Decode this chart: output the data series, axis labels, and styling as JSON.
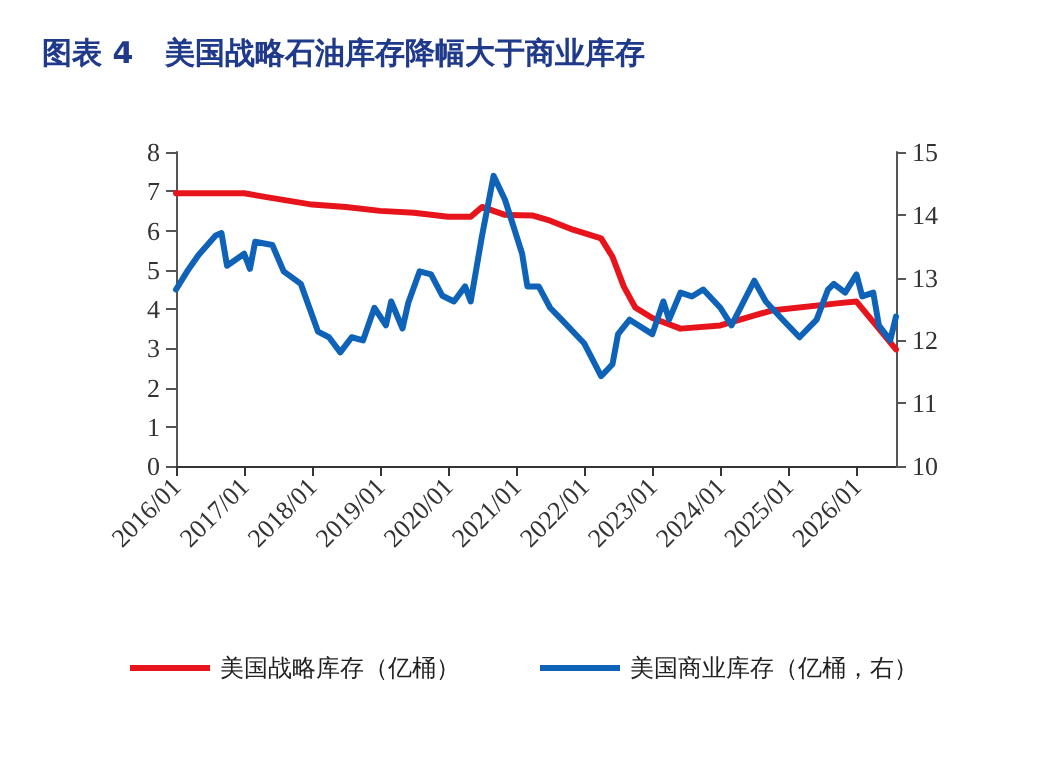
{
  "chart_data": {
    "type": "line",
    "title": "图表 4   美国战略石油库存降幅大于商业库存",
    "xlim": [
      "2016-01",
      "2026-08"
    ],
    "xticks": [
      {
        "value": "2016-01",
        "label": "2016/01"
      },
      {
        "value": "2017-01",
        "label": "2017/01"
      },
      {
        "value": "2018-01",
        "label": "2018/01"
      },
      {
        "value": "2019-01",
        "label": "2019/01"
      },
      {
        "value": "2020-01",
        "label": "2020/01"
      },
      {
        "value": "2021-01",
        "label": "2021/01"
      },
      {
        "value": "2022-01",
        "label": "2022/01"
      },
      {
        "value": "2023-01",
        "label": "2023/01"
      },
      {
        "value": "2024-01",
        "label": "2024/01"
      },
      {
        "value": "2025-01",
        "label": "2025/01"
      },
      {
        "value": "2026-01",
        "label": "2026/01"
      }
    ],
    "ylim": [
      0,
      8
    ],
    "yticks": [
      0,
      1,
      2,
      3,
      4,
      5,
      6,
      7,
      8
    ],
    "y2lim": [
      10,
      15
    ],
    "y2ticks": [
      10,
      11,
      12,
      13,
      14,
      15
    ],
    "grid": false,
    "legend": "bottom",
    "marker": "none",
    "line_style": "solid",
    "series": [
      {
        "name": "美国战略库存（亿桶）",
        "color": "#e8141c",
        "x": [
          "2016-01",
          "2017-01",
          "2017-05",
          "2018-01",
          "2018-07",
          "2019-01",
          "2019-07",
          "2020-01",
          "2020-05",
          "2020-07",
          "2020-11",
          "2021-04",
          "2021-07",
          "2021-11",
          "2022-04",
          "2022-06",
          "2022-08",
          "2022-10",
          "2023-01",
          "2023-06",
          "2024-01",
          "2024-10",
          "2025-10",
          "2026-01",
          "2026-08"
        ],
        "values": [
          6.95,
          6.95,
          6.85,
          6.66,
          6.6,
          6.5,
          6.45,
          6.35,
          6.35,
          6.6,
          6.4,
          6.38,
          6.25,
          6.02,
          5.8,
          5.33,
          4.57,
          4.04,
          3.77,
          3.5,
          3.58,
          3.96,
          4.15,
          4.19,
          2.97
        ]
      },
      {
        "name": "美国商业库存（亿桶，右）",
        "color": "#0e63b8",
        "axis": "y2",
        "x": [
          "2016-01",
          "2016-03",
          "2016-05",
          "2016-08",
          "2016-09",
          "2016-10",
          "2017-01",
          "2017-02",
          "2017-03",
          "2017-06",
          "2017-08",
          "2017-11",
          "2018-02",
          "2018-04",
          "2018-06",
          "2018-08",
          "2018-10",
          "2018-12",
          "2019-02",
          "2019-03",
          "2019-05",
          "2019-06",
          "2019-08",
          "2019-10",
          "2019-12",
          "2020-02",
          "2020-04",
          "2020-05",
          "2020-07",
          "2020-09",
          "2020-11",
          "2021-01",
          "2021-02",
          "2021-03",
          "2021-05",
          "2021-07",
          "2021-09",
          "2022-01",
          "2022-04",
          "2022-06",
          "2022-07",
          "2022-09",
          "2023-01",
          "2023-03",
          "2023-04",
          "2023-06",
          "2023-08",
          "2023-10",
          "2024-01",
          "2024-03",
          "2024-07",
          "2024-09",
          "2024-12",
          "2025-03",
          "2025-06",
          "2025-08",
          "2025-09",
          "2025-11",
          "2026-01",
          "2026-02",
          "2026-04",
          "2026-05",
          "2026-07",
          "2026-08"
        ],
        "values": [
          12.81,
          13.1,
          13.36,
          13.67,
          13.71,
          13.19,
          13.38,
          13.14,
          13.57,
          13.52,
          13.1,
          12.9,
          12.14,
          12.05,
          11.81,
          12.05,
          12.0,
          12.52,
          12.24,
          12.62,
          12.19,
          12.6,
          13.1,
          13.05,
          12.71,
          12.62,
          12.86,
          12.62,
          13.67,
          14.62,
          14.24,
          13.67,
          13.38,
          12.86,
          12.86,
          12.52,
          12.33,
          11.95,
          11.43,
          11.62,
          12.1,
          12.33,
          12.1,
          12.62,
          12.33,
          12.76,
          12.7,
          12.81,
          12.52,
          12.24,
          12.95,
          12.62,
          12.33,
          12.05,
          12.33,
          12.81,
          12.9,
          12.76,
          13.05,
          12.7,
          12.76,
          12.24,
          12.0,
          12.38
        ]
      }
    ]
  }
}
